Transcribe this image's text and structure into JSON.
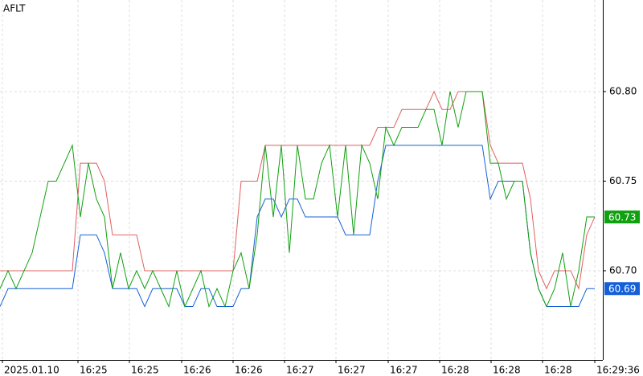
{
  "chart_data": {
    "type": "line",
    "title": "AFLT",
    "x": [
      0,
      1,
      2,
      3,
      4,
      5,
      6,
      7,
      8,
      9,
      10,
      11,
      12,
      13,
      14,
      15,
      16,
      17,
      18,
      19,
      20,
      21,
      22,
      23,
      24,
      25,
      26,
      27,
      28,
      29,
      30,
      31,
      32,
      33,
      34,
      35,
      36,
      37,
      38,
      39,
      40,
      41,
      42,
      43,
      44,
      45,
      46,
      47,
      48,
      49,
      50,
      51,
      52,
      53,
      54,
      55,
      56,
      57,
      58,
      59,
      60,
      61,
      62,
      63,
      64,
      65,
      66,
      67,
      68,
      69,
      70,
      71,
      72,
      73,
      74
    ],
    "series": [
      {
        "color": "#e06060",
        "values": [
          60.7,
          60.7,
          60.7,
          60.7,
          60.7,
          60.7,
          60.7,
          60.7,
          60.7,
          60.7,
          60.76,
          60.76,
          60.76,
          60.75,
          60.72,
          60.72,
          60.72,
          60.72,
          60.7,
          60.7,
          60.7,
          60.7,
          60.7,
          60.7,
          60.7,
          60.7,
          60.7,
          60.7,
          60.7,
          60.7,
          60.75,
          60.75,
          60.75,
          60.77,
          60.77,
          60.77,
          60.77,
          60.77,
          60.77,
          60.77,
          60.77,
          60.77,
          60.77,
          60.77,
          60.77,
          60.77,
          60.77,
          60.78,
          60.78,
          60.78,
          60.79,
          60.79,
          60.79,
          60.79,
          60.8,
          60.79,
          60.79,
          60.8,
          60.8,
          60.8,
          60.8,
          60.77,
          60.76,
          60.76,
          60.76,
          60.76,
          60.74,
          60.7,
          60.69,
          60.7,
          60.7,
          60.7,
          60.69,
          60.72,
          60.73
        ]
      },
      {
        "color": "#1560d8",
        "values": [
          60.68,
          60.69,
          60.69,
          60.69,
          60.69,
          60.69,
          60.69,
          60.69,
          60.69,
          60.69,
          60.72,
          60.72,
          60.72,
          60.71,
          60.69,
          60.69,
          60.69,
          60.69,
          60.68,
          60.69,
          60.69,
          60.69,
          60.69,
          60.68,
          60.68,
          60.69,
          60.69,
          60.68,
          60.68,
          60.68,
          60.69,
          60.69,
          60.73,
          60.74,
          60.74,
          60.73,
          60.74,
          60.74,
          60.73,
          60.73,
          60.73,
          60.73,
          60.73,
          60.72,
          60.72,
          60.72,
          60.72,
          60.75,
          60.77,
          60.77,
          60.77,
          60.77,
          60.77,
          60.77,
          60.77,
          60.77,
          60.77,
          60.77,
          60.77,
          60.77,
          60.77,
          60.74,
          60.75,
          60.75,
          60.75,
          60.75,
          60.71,
          60.69,
          60.68,
          60.68,
          60.68,
          60.68,
          60.68,
          60.69,
          60.69
        ]
      },
      {
        "color": "#10a010",
        "values": [
          60.69,
          60.7,
          60.69,
          60.7,
          60.71,
          60.73,
          60.75,
          60.75,
          60.76,
          60.77,
          60.73,
          60.76,
          60.74,
          60.73,
          60.69,
          60.71,
          60.69,
          60.7,
          60.69,
          60.7,
          60.69,
          60.68,
          60.7,
          60.68,
          60.69,
          60.7,
          60.68,
          60.69,
          60.68,
          60.7,
          60.71,
          60.69,
          60.72,
          60.77,
          60.73,
          60.77,
          60.71,
          60.77,
          60.74,
          60.74,
          60.76,
          60.77,
          60.73,
          60.77,
          60.72,
          60.77,
          60.76,
          60.74,
          60.78,
          60.77,
          60.78,
          60.78,
          60.78,
          60.79,
          60.79,
          60.77,
          60.8,
          60.78,
          60.8,
          60.8,
          60.8,
          60.76,
          60.76,
          60.74,
          60.75,
          60.75,
          60.71,
          60.69,
          60.68,
          60.69,
          60.71,
          60.68,
          60.7,
          60.73,
          60.73
        ]
      }
    ],
    "xlim": [
      0,
      75
    ],
    "ylim": [
      60.6502,
      60.8511
    ],
    "yticks": [
      {
        "value": 60.7,
        "label": "60.70"
      },
      60.75,
      {
        "value": 60.8,
        "label": "60.80"
      }
    ],
    "xticks": [
      {
        "value": 0.3,
        "label": "2025.01.10"
      },
      {
        "value": 9.7,
        "label": "16:25"
      },
      {
        "value": 16.1,
        "label": "16:25"
      },
      {
        "value": 22.6,
        "label": "16:26"
      },
      {
        "value": 29.0,
        "label": "16:26"
      },
      {
        "value": 35.4,
        "label": "16:27"
      },
      {
        "value": 41.8,
        "label": "16:27"
      },
      {
        "value": 48.3,
        "label": "16:27"
      },
      {
        "value": 54.7,
        "label": "16:28"
      },
      {
        "value": 61.1,
        "label": "16:28"
      },
      {
        "value": 67.5,
        "label": "16:28"
      },
      {
        "value": 74.0,
        "label": "16:29:36"
      }
    ],
    "grid": true,
    "price_tags": [
      {
        "value": 60.73,
        "label": "60.73",
        "color": "#10a010"
      },
      {
        "value": 60.69,
        "label": "60.69",
        "color": "#1560d8"
      }
    ]
  }
}
